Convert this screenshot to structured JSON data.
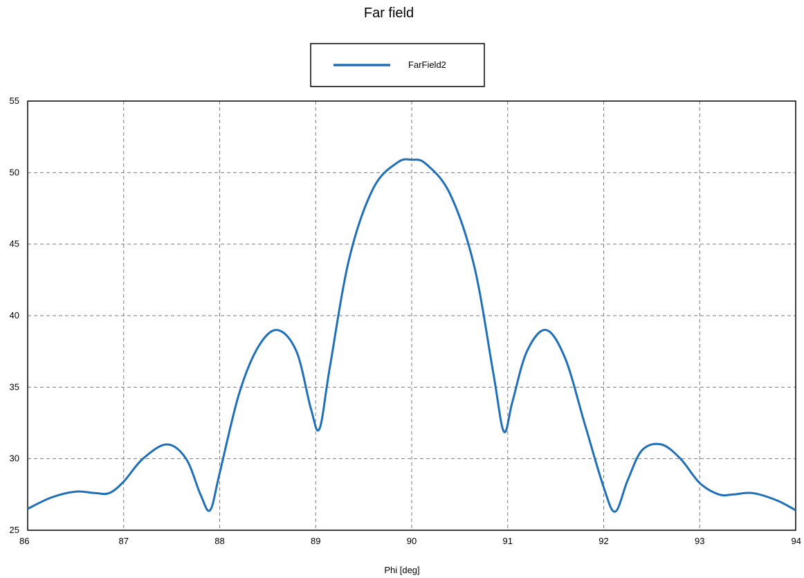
{
  "chart_data": {
    "type": "line",
    "title": "Far field",
    "xlabel": "Phi [deg]",
    "ylabel": "",
    "xlim": [
      86,
      94
    ],
    "ylim": [
      25,
      55
    ],
    "xticks": [
      86,
      87,
      88,
      89,
      90,
      91,
      92,
      93,
      94
    ],
    "yticks": [
      25,
      30,
      35,
      40,
      45,
      50,
      55
    ],
    "grid": true,
    "legend_position": "top-center",
    "series": [
      {
        "name": "FarField2",
        "color": "#1f6fb8",
        "x": [
          86.0,
          86.25,
          86.5,
          86.7,
          86.85,
          87.0,
          87.2,
          87.45,
          87.65,
          87.8,
          87.9,
          88.0,
          88.2,
          88.4,
          88.6,
          88.8,
          88.95,
          89.04,
          89.15,
          89.35,
          89.6,
          89.85,
          90.0,
          90.15,
          90.4,
          90.65,
          90.85,
          90.96,
          91.05,
          91.2,
          91.4,
          91.6,
          91.8,
          92.0,
          92.12,
          92.25,
          92.4,
          92.6,
          92.8,
          93.0,
          93.2,
          93.35,
          93.55,
          93.8,
          94.0
        ],
        "y": [
          26.5,
          27.3,
          27.7,
          27.6,
          27.6,
          28.4,
          30.0,
          31.0,
          30.0,
          27.5,
          26.4,
          29.0,
          34.5,
          37.8,
          39.0,
          37.5,
          33.5,
          32.1,
          36.5,
          44.0,
          48.9,
          50.7,
          50.9,
          50.6,
          48.5,
          43.5,
          36.0,
          31.9,
          34.0,
          37.5,
          39.0,
          37.0,
          32.5,
          28.0,
          26.3,
          28.5,
          30.6,
          31.0,
          30.0,
          28.3,
          27.5,
          27.5,
          27.6,
          27.1,
          26.4
        ]
      }
    ]
  }
}
